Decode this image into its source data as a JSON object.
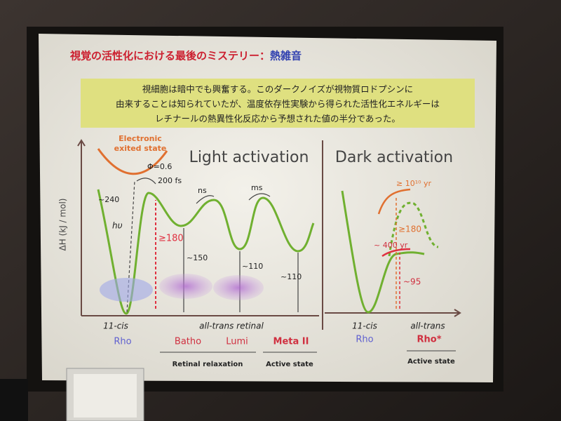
{
  "slide": {
    "title": {
      "main": "視覚の活性化における最後のミステリー：",
      "highlight": "熱雑音"
    },
    "summary": [
      "視細胞は暗中でも興奮する。このダークノイズが視物質ロドプシンに",
      "由来することは知られていたが、温度依存性実験から得られた活性化エネルギーは",
      "レチナールの熱異性化反応から予想された値の半分であった。"
    ],
    "y_axis_label": "ΔH (kJ / mol)",
    "light_panel": {
      "heading": "Light activation",
      "excited_state": [
        "Electronic",
        "exited state"
      ],
      "quantum_yield": "Φ=0.6",
      "time_fs": "200 fs",
      "time_ns": "ns",
      "time_ms": "ms",
      "photon": "hυ",
      "energies": [
        "~240",
        "≥180",
        "~150",
        "~110",
        "~110"
      ],
      "isomer_cis": "11-cis",
      "isomer_trans": "all-trans retinal",
      "states": [
        "Rho",
        "Batho",
        "Lumi",
        "Meta II"
      ],
      "phases": [
        "Retinal relaxation",
        "Active state"
      ]
    },
    "dark_panel": {
      "heading": "Dark activation",
      "time_long": "≥ 10¹⁰ yr",
      "time_short": "~ 400 yr",
      "energies": [
        "≥180",
        "~95"
      ],
      "isomer_cis": "11-cis",
      "isomer_trans": "all-trans",
      "states": [
        "Rho",
        "Rho*"
      ],
      "phase": "Active state"
    }
  }
}
